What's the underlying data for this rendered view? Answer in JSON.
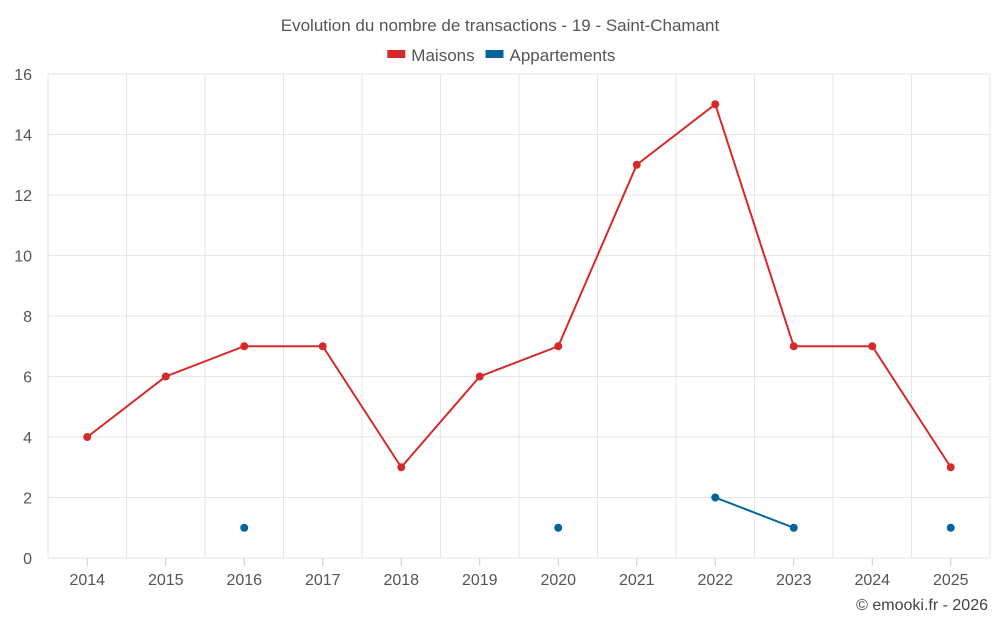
{
  "chart_data": {
    "type": "line",
    "title": "Evolution du nombre de transactions - 19 - Saint-Chamant",
    "categories": [
      "2014",
      "2015",
      "2016",
      "2017",
      "2018",
      "2019",
      "2020",
      "2021",
      "2022",
      "2023",
      "2024",
      "2025"
    ],
    "series": [
      {
        "name": "Maisons",
        "color": "#d62a2a",
        "values": [
          4,
          6,
          7,
          7,
          3,
          6,
          7,
          13,
          15,
          7,
          7,
          3
        ]
      },
      {
        "name": "Appartements",
        "color": "#03659c",
        "values": [
          null,
          null,
          1,
          null,
          null,
          null,
          1,
          null,
          2,
          1,
          null,
          1
        ]
      }
    ],
    "ylim": [
      0,
      16
    ],
    "yticks": [
      0,
      2,
      4,
      6,
      8,
      10,
      12,
      14,
      16
    ],
    "grid": true,
    "legend": "top-center",
    "xlabel": "",
    "ylabel": ""
  },
  "credit": "© emooki.fr - 2026"
}
